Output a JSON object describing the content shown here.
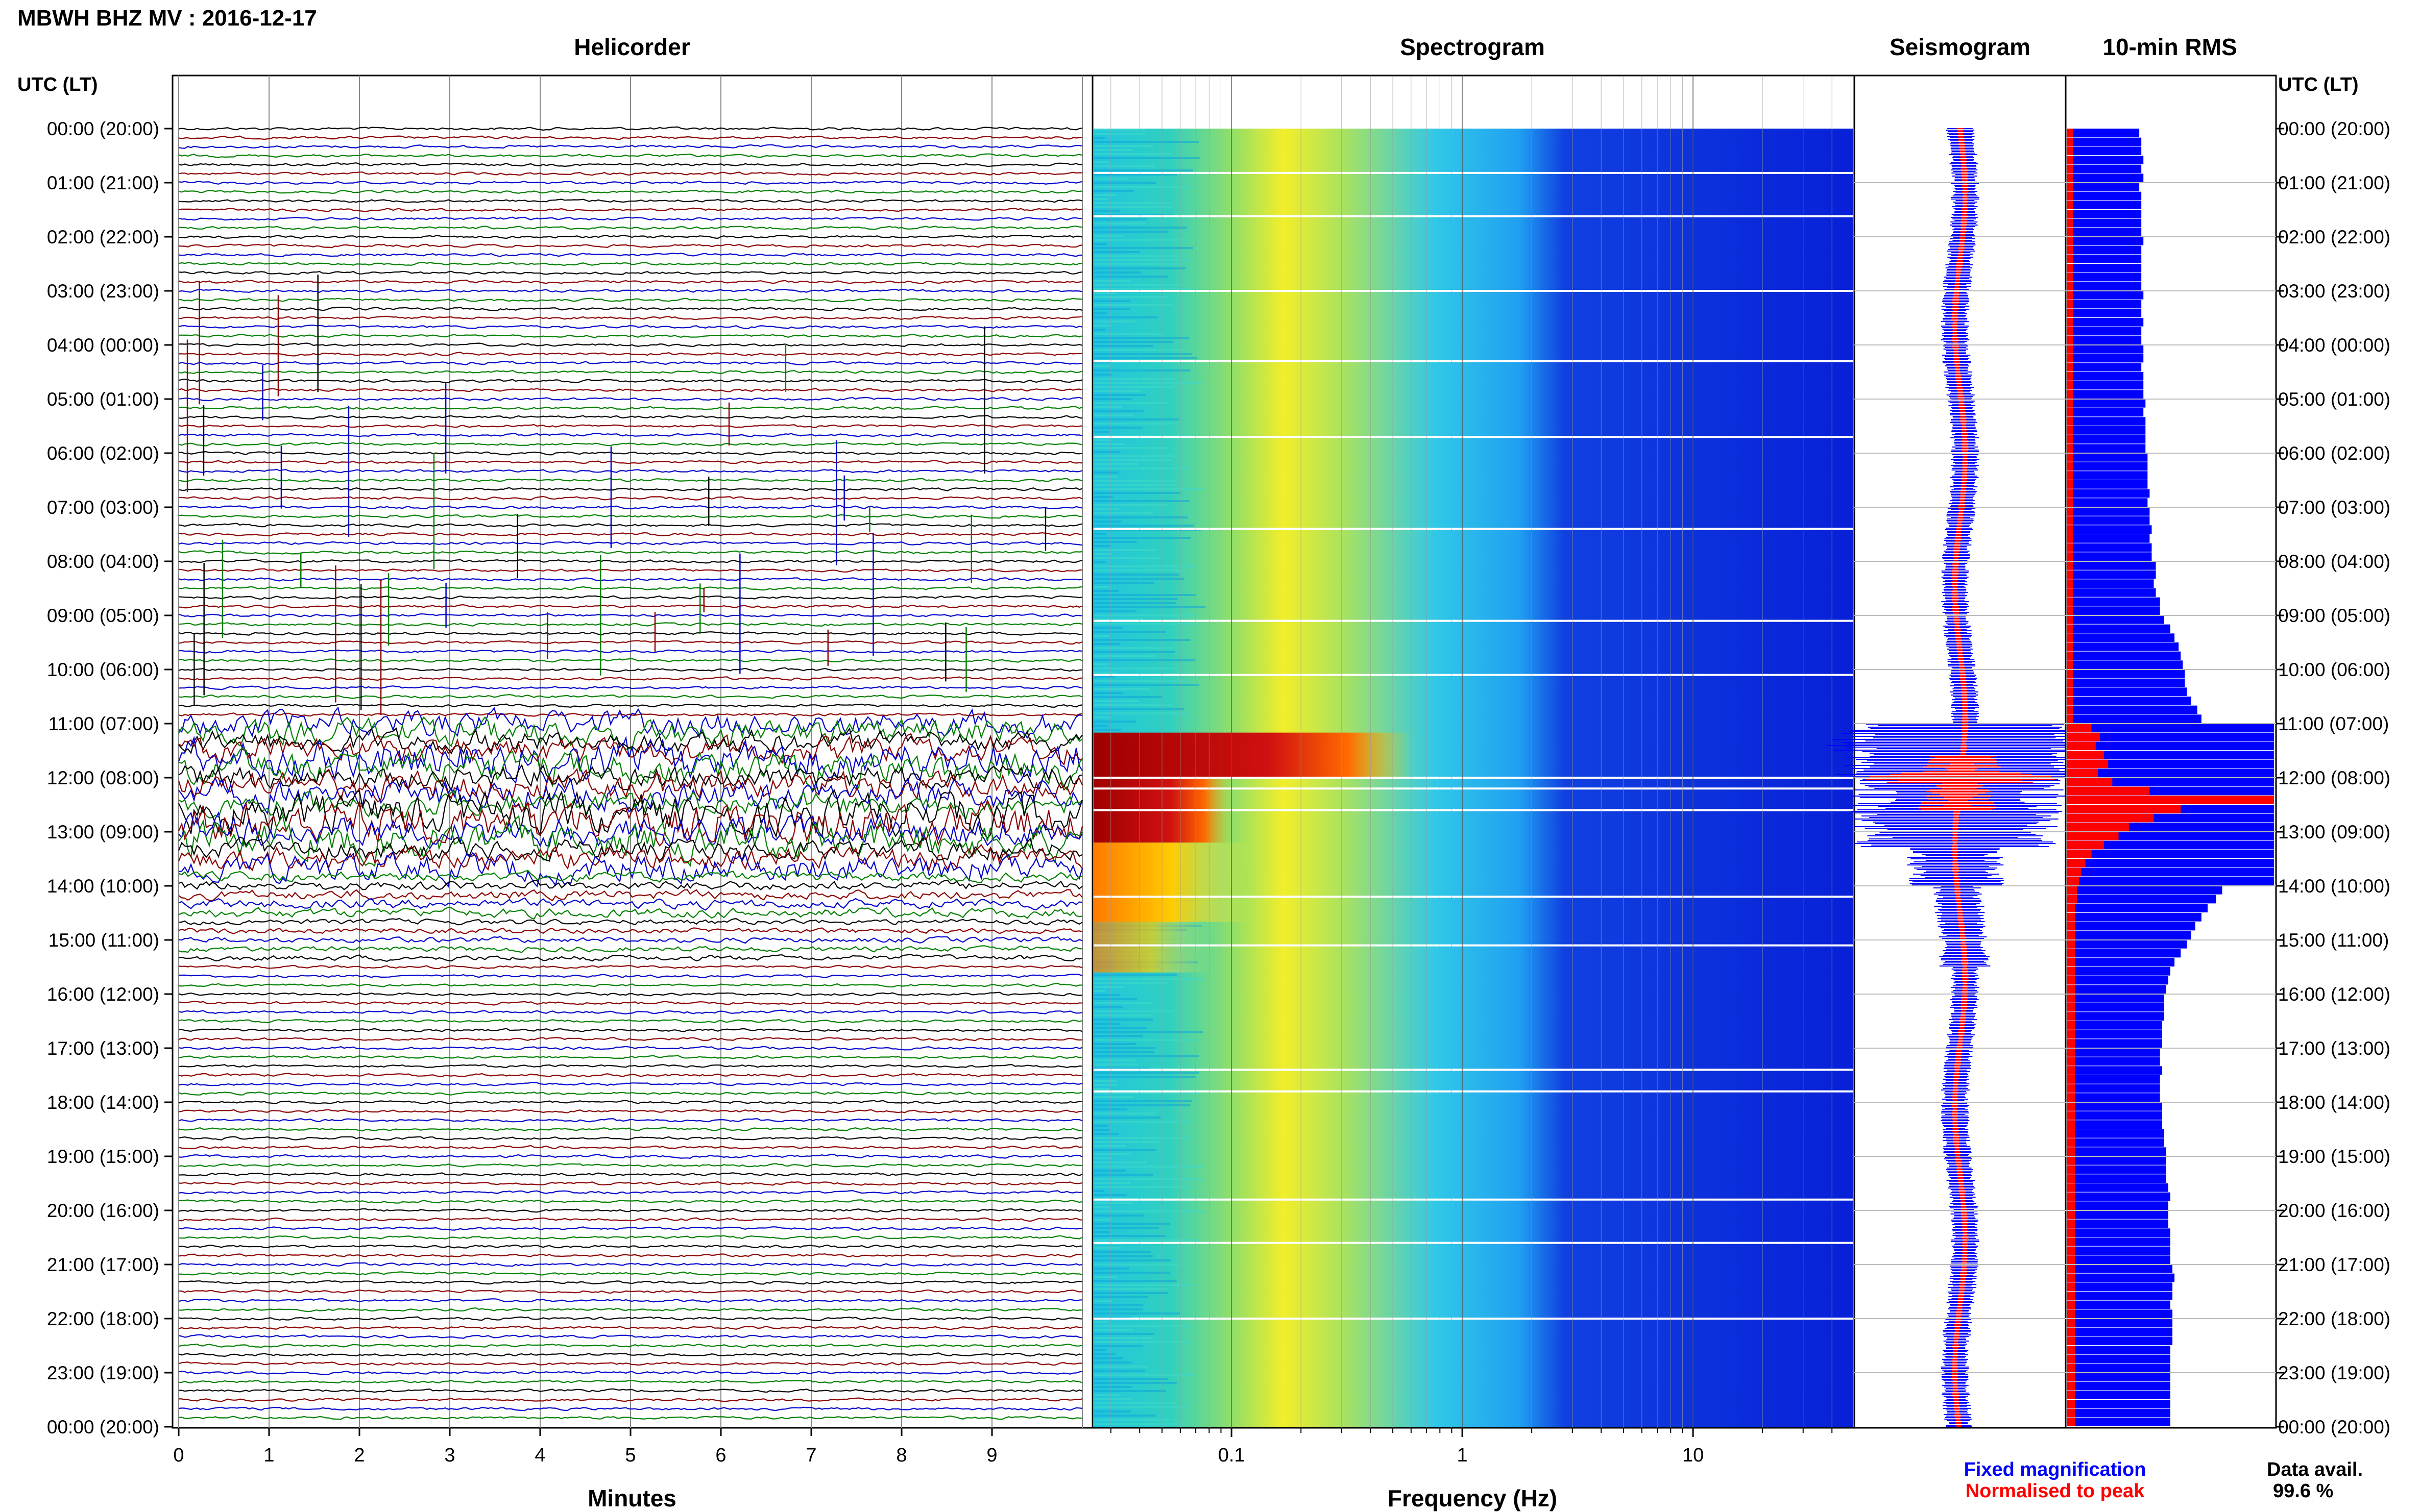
{
  "header": {
    "station_title": "MBWH BHZ MV : 2016-12-17",
    "time_column_label_left": "UTC (LT)",
    "time_column_label_right": "UTC (LT)"
  },
  "panels": {
    "helicorder": "Helicorder",
    "spectrogram": "Spectrogram",
    "seismogram": "Seismogram",
    "rms": "10-min RMS"
  },
  "axes": {
    "helicorder_xlabel": "Minutes",
    "spectrogram_xlabel": "Frequency (Hz)",
    "helicorder_ticks": [
      "0",
      "1",
      "2",
      "3",
      "4",
      "5",
      "6",
      "7",
      "8",
      "9"
    ],
    "spectrogram_ticks": [
      "0.1",
      "1",
      "10"
    ]
  },
  "time_labels": [
    "00:00 (20:00)",
    "01:00 (21:00)",
    "02:00 (22:00)",
    "03:00 (23:00)",
    "04:00 (00:00)",
    "05:00 (01:00)",
    "06:00 (02:00)",
    "07:00 (03:00)",
    "08:00 (04:00)",
    "09:00 (05:00)",
    "10:00 (06:00)",
    "11:00 (07:00)",
    "12:00 (08:00)",
    "13:00 (09:00)",
    "14:00 (10:00)",
    "15:00 (11:00)",
    "16:00 (12:00)",
    "17:00 (13:00)",
    "18:00 (14:00)",
    "19:00 (15:00)",
    "20:00 (16:00)",
    "21:00 (17:00)",
    "22:00 (18:00)",
    "23:00 (19:00)",
    "00:00 (20:00)"
  ],
  "legend": {
    "fixed_label": "Fixed magnification",
    "normalised_label": "Normalised to peak",
    "fixed_color": "#0000ff",
    "normalised_color": "#ff0000"
  },
  "availability": {
    "label": "Data avail.",
    "value": "99.6 %"
  },
  "colors": {
    "trace_colors": [
      "#000000",
      "#8b0000",
      "#0000cd",
      "#008000"
    ],
    "rms_fixed": "#0000ff",
    "rms_normalised": "#ff0000"
  },
  "chart_data": {
    "type": "heatmap",
    "helicorder": {
      "x_range_minutes": [
        0,
        10
      ],
      "lines": 144,
      "line_minutes": 10,
      "active_window_utc": [
        "11:00",
        "15:00"
      ]
    },
    "spectrogram": {
      "x_scale": "log",
      "x_range_hz": [
        0.025,
        50
      ],
      "low_freq_energy_window_utc": [
        "11:10",
        "14:40"
      ]
    },
    "rms_10min": {
      "fixed_relative": [
        0.35,
        0.36,
        0.36,
        0.37,
        0.36,
        0.37,
        0.35,
        0.36,
        0.36,
        0.36,
        0.36,
        0.36,
        0.37,
        0.36,
        0.36,
        0.36,
        0.36,
        0.36,
        0.37,
        0.36,
        0.36,
        0.37,
        0.36,
        0.36,
        0.37,
        0.37,
        0.36,
        0.37,
        0.37,
        0.37,
        0.38,
        0.37,
        0.38,
        0.38,
        0.38,
        0.38,
        0.39,
        0.39,
        0.39,
        0.39,
        0.4,
        0.39,
        0.4,
        0.4,
        0.41,
        0.4,
        0.41,
        0.41,
        0.43,
        0.43,
        0.42,
        0.43,
        0.45,
        0.45,
        0.47,
        0.5,
        0.52,
        0.54,
        0.55,
        0.56,
        0.57,
        0.57,
        0.58,
        0.6,
        0.63,
        0.65,
        1.0,
        1.0,
        1.0,
        1.0,
        1.0,
        1.0,
        1.0,
        1.0,
        1.0,
        1.0,
        1.0,
        1.0,
        1.0,
        1.0,
        1.0,
        1.0,
        1.0,
        1.0,
        0.75,
        0.72,
        0.68,
        0.65,
        0.62,
        0.6,
        0.58,
        0.55,
        0.52,
        0.5,
        0.49,
        0.48,
        0.47,
        0.47,
        0.47,
        0.46,
        0.46,
        0.46,
        0.45,
        0.45,
        0.46,
        0.45,
        0.45,
        0.45,
        0.46,
        0.46,
        0.46,
        0.47,
        0.47,
        0.48,
        0.48,
        0.48,
        0.48,
        0.49,
        0.5,
        0.49,
        0.49,
        0.49,
        0.5,
        0.5,
        0.5,
        0.5,
        0.51,
        0.52,
        0.51,
        0.51,
        0.5,
        0.51,
        0.51,
        0.51,
        0.51,
        0.5,
        0.5,
        0.5,
        0.5,
        0.5,
        0.5,
        0.5,
        0.5,
        0.5
      ],
      "normalised_relative": [
        0.03,
        0.03,
        0.03,
        0.03,
        0.03,
        0.03,
        0.03,
        0.03,
        0.03,
        0.03,
        0.03,
        0.03,
        0.03,
        0.03,
        0.03,
        0.03,
        0.03,
        0.03,
        0.03,
        0.03,
        0.03,
        0.03,
        0.03,
        0.03,
        0.03,
        0.03,
        0.03,
        0.03,
        0.03,
        0.03,
        0.03,
        0.03,
        0.03,
        0.03,
        0.03,
        0.03,
        0.03,
        0.03,
        0.03,
        0.03,
        0.03,
        0.03,
        0.03,
        0.03,
        0.03,
        0.03,
        0.03,
        0.03,
        0.03,
        0.03,
        0.03,
        0.03,
        0.03,
        0.03,
        0.03,
        0.03,
        0.03,
        0.03,
        0.03,
        0.03,
        0.03,
        0.03,
        0.03,
        0.03,
        0.03,
        0.03,
        0.12,
        0.16,
        0.14,
        0.18,
        0.2,
        0.15,
        0.22,
        0.4,
        1.0,
        0.55,
        0.42,
        0.3,
        0.25,
        0.18,
        0.12,
        0.09,
        0.07,
        0.06,
        0.05,
        0.05,
        0.04,
        0.04,
        0.04,
        0.04,
        0.04,
        0.04,
        0.04,
        0.04,
        0.04,
        0.04,
        0.04,
        0.04,
        0.04,
        0.04,
        0.04,
        0.04,
        0.04,
        0.04,
        0.04,
        0.04,
        0.04,
        0.04,
        0.04,
        0.04,
        0.04,
        0.04,
        0.04,
        0.04,
        0.04,
        0.04,
        0.04,
        0.04,
        0.04,
        0.04,
        0.04,
        0.04,
        0.04,
        0.04,
        0.04,
        0.04,
        0.04,
        0.04,
        0.04,
        0.04,
        0.04,
        0.04,
        0.04,
        0.04,
        0.04,
        0.04,
        0.04,
        0.04,
        0.04,
        0.04,
        0.04,
        0.04,
        0.04,
        0.04
      ]
    }
  }
}
